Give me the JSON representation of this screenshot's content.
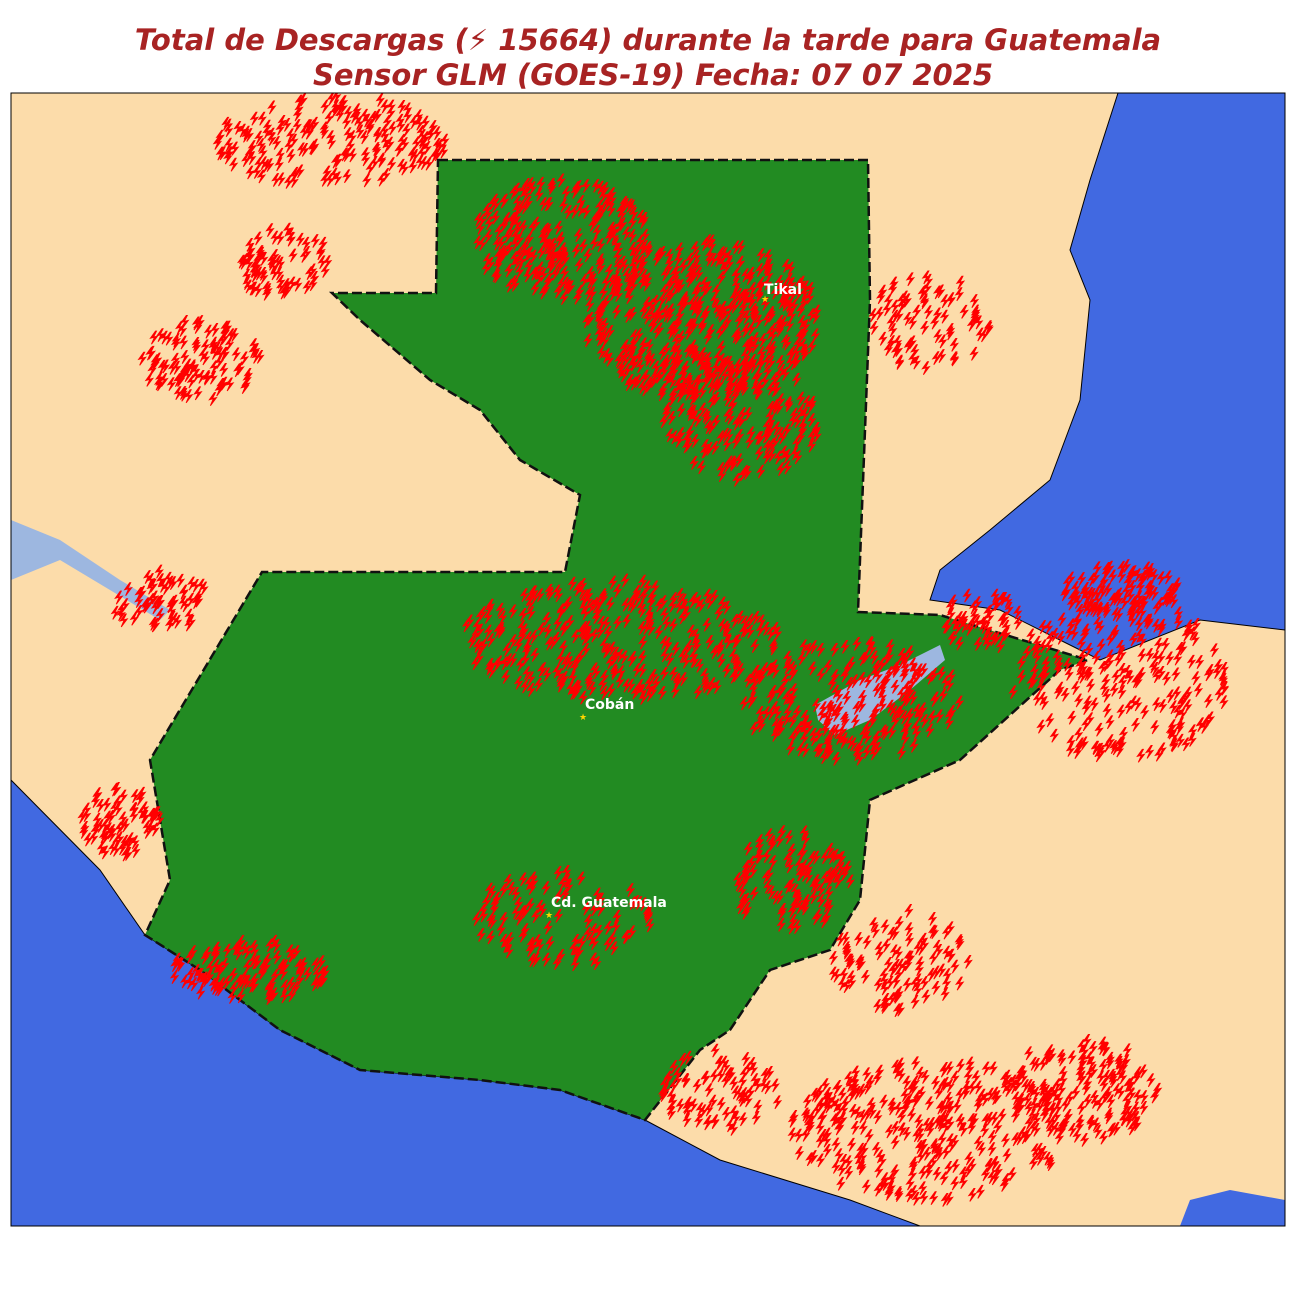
{
  "title": {
    "line1": "Total de Descargas (⚡ 15664) durante la tarde para Guatemala",
    "line2": "Sensor GLM (GOES-19) Fecha: 07 07 2025"
  },
  "cities": [
    {
      "label": "Tikal"
    },
    {
      "label": "Cobán"
    },
    {
      "label": "Cd. Guatemala"
    }
  ]
}
